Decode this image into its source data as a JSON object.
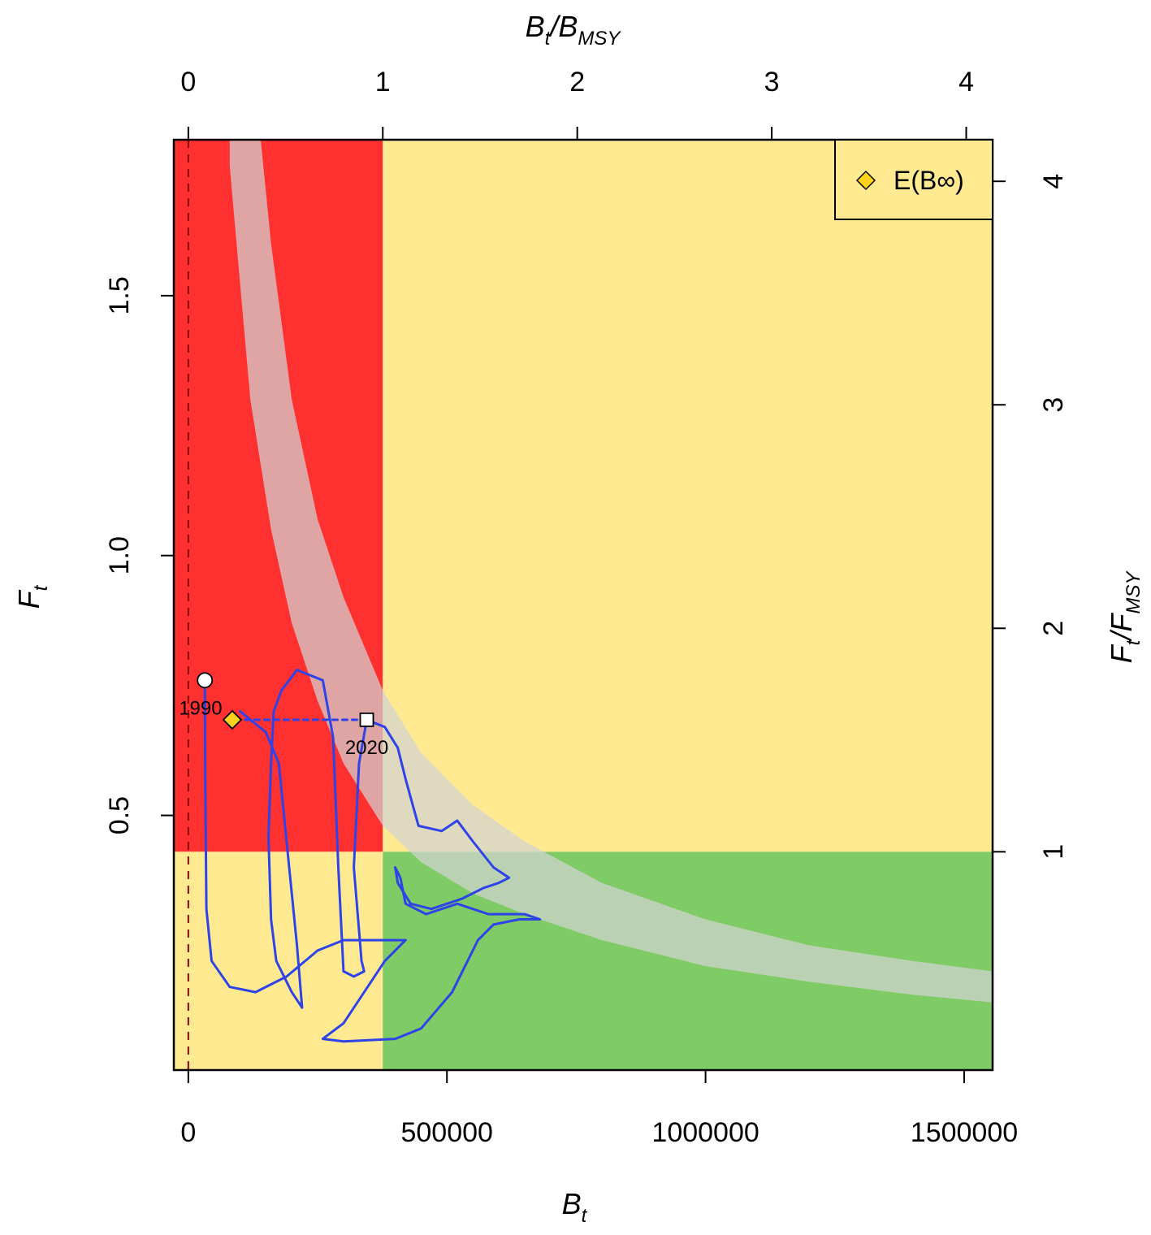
{
  "chart_data": {
    "type": "line",
    "title": "",
    "xlabel": {
      "main": "B",
      "sub": "t"
    },
    "ylabel": {
      "main": "F",
      "sub": "t"
    },
    "x2label": {
      "main": "B",
      "sub1": "t",
      "slash": "/B",
      "sub2": "MSY"
    },
    "y2label": {
      "main": "F",
      "sub1": "t",
      "slash": "/F",
      "sub2": "MSY"
    },
    "xlim": [
      -28000,
      1555000
    ],
    "ylim": [
      0.01,
      1.8
    ],
    "x_ticks": [
      {
        "value": 0,
        "label": "0"
      },
      {
        "value": 500000,
        "label": "500000"
      },
      {
        "value": 1000000,
        "label": "1000000"
      },
      {
        "value": 1500000,
        "label": "1500000"
      }
    ],
    "y_ticks": [
      {
        "value": 0.5,
        "label": "0.5"
      },
      {
        "value": 1.0,
        "label": "1.0"
      },
      {
        "value": 1.5,
        "label": "1.5"
      }
    ],
    "x2_ticks": [
      {
        "value": 0,
        "label": "0"
      },
      {
        "value": 1,
        "label": "1"
      },
      {
        "value": 2,
        "label": "2"
      },
      {
        "value": 3,
        "label": "3"
      },
      {
        "value": 4,
        "label": "4"
      }
    ],
    "y2_ticks": [
      {
        "value": 1,
        "label": "1"
      },
      {
        "value": 2,
        "label": "2"
      },
      {
        "value": 3,
        "label": "3"
      },
      {
        "value": 4,
        "label": "4"
      }
    ],
    "bmsy": 376000,
    "fmsy": 0.43,
    "zone_colors": {
      "overfished_overfishing": "#ff3030",
      "caution": "#ffe991",
      "healthy": "#7fcc66"
    },
    "msy_band": {
      "x": [
        80000,
        120000,
        160000,
        200000,
        250000,
        300000,
        376000,
        450000,
        550000,
        650000,
        800000,
        1000000,
        1200000,
        1400000,
        1555000
      ],
      "lower": [
        1.75,
        1.3,
        1.05,
        0.87,
        0.72,
        0.6,
        0.48,
        0.41,
        0.35,
        0.31,
        0.26,
        0.21,
        0.18,
        0.155,
        0.14
      ],
      "upper": [
        2.6,
        2.0,
        1.6,
        1.3,
        1.07,
        0.92,
        0.74,
        0.62,
        0.52,
        0.45,
        0.37,
        0.3,
        0.25,
        0.22,
        0.2
      ],
      "color": "#d3d3d3"
    },
    "blim_line": {
      "x": 0,
      "color": "#8b0000"
    },
    "series": [
      {
        "type": "trajectory",
        "color": "#2e43e8",
        "points": [
          [
            32000,
            0.76
          ],
          [
            33000,
            0.55
          ],
          [
            35000,
            0.32
          ],
          [
            45000,
            0.22
          ],
          [
            80000,
            0.17
          ],
          [
            130000,
            0.16
          ],
          [
            190000,
            0.19
          ],
          [
            250000,
            0.24
          ],
          [
            300000,
            0.26
          ],
          [
            350000,
            0.26
          ],
          [
            390000,
            0.26
          ],
          [
            420000,
            0.26
          ],
          [
            380000,
            0.22
          ],
          [
            300000,
            0.1
          ],
          [
            260000,
            0.07
          ],
          [
            300000,
            0.065
          ],
          [
            400000,
            0.07
          ],
          [
            450000,
            0.09
          ],
          [
            510000,
            0.16
          ],
          [
            540000,
            0.22
          ],
          [
            560000,
            0.26
          ],
          [
            590000,
            0.29
          ],
          [
            640000,
            0.3
          ],
          [
            680000,
            0.3
          ],
          [
            650000,
            0.31
          ],
          [
            580000,
            0.31
          ],
          [
            520000,
            0.33
          ],
          [
            460000,
            0.31
          ],
          [
            420000,
            0.33
          ],
          [
            410000,
            0.38
          ],
          [
            400000,
            0.4
          ],
          [
            405000,
            0.37
          ],
          [
            430000,
            0.33
          ],
          [
            470000,
            0.32
          ],
          [
            530000,
            0.34
          ],
          [
            570000,
            0.36
          ],
          [
            600000,
            0.37
          ],
          [
            620000,
            0.38
          ],
          [
            590000,
            0.4
          ],
          [
            550000,
            0.45
          ],
          [
            520000,
            0.49
          ],
          [
            490000,
            0.47
          ],
          [
            445000,
            0.48
          ],
          [
            420000,
            0.57
          ],
          [
            405000,
            0.63
          ],
          [
            380000,
            0.67
          ],
          [
            345000,
            0.684
          ],
          [
            330000,
            0.6
          ],
          [
            320000,
            0.4
          ],
          [
            335000,
            0.22
          ],
          [
            340000,
            0.2
          ],
          [
            320000,
            0.19
          ],
          [
            300000,
            0.2
          ],
          [
            290000,
            0.4
          ],
          [
            280000,
            0.65
          ],
          [
            260000,
            0.76
          ],
          [
            210000,
            0.78
          ],
          [
            180000,
            0.74
          ],
          [
            165000,
            0.7
          ],
          [
            160000,
            0.6
          ],
          [
            155000,
            0.46
          ],
          [
            160000,
            0.3
          ],
          [
            170000,
            0.22
          ],
          [
            200000,
            0.16
          ],
          [
            220000,
            0.13
          ],
          [
            210000,
            0.25
          ],
          [
            190000,
            0.45
          ],
          [
            175000,
            0.6
          ],
          [
            150000,
            0.66
          ],
          [
            100000,
            0.7
          ]
        ]
      },
      {
        "type": "projection",
        "color": "#2e43e8",
        "points": [
          [
            345000,
            0.684
          ],
          [
            85000,
            0.684
          ]
        ]
      }
    ],
    "points": [
      {
        "name": "start",
        "shape": "circle",
        "x": 32000,
        "y": 0.76,
        "fill": "#ffffff"
      },
      {
        "name": "end",
        "shape": "square",
        "x": 345000,
        "y": 0.684,
        "fill": "#ffffff"
      },
      {
        "name": "equilibrium",
        "shape": "diamond",
        "x": 85000,
        "y": 0.684,
        "fill": "#ffd21e"
      }
    ],
    "annotations": [
      {
        "text": "1990",
        "x": 32000,
        "y": 0.76
      },
      {
        "text": "2020",
        "x": 345000,
        "y": 0.684
      }
    ],
    "legend": {
      "position": "top-right",
      "label": "E(B∞)",
      "marker": "diamond",
      "marker_color": "#ffd21e"
    }
  }
}
